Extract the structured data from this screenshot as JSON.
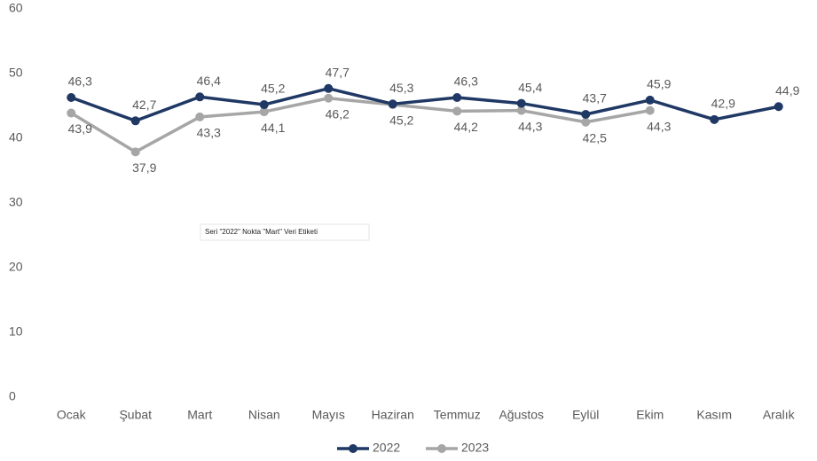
{
  "chart_data": {
    "type": "line",
    "categories": [
      "Ocak",
      "Şubat",
      "Mart",
      "Nisan",
      "Mayıs",
      "Haziran",
      "Temmuz",
      "Ağustos",
      "Eylül",
      "Ekim",
      "Kasım",
      "Aralık"
    ],
    "series": [
      {
        "name": "2022",
        "color": "#1f3864",
        "values": [
          46.3,
          42.7,
          46.4,
          45.2,
          47.7,
          45.3,
          46.3,
          45.4,
          43.7,
          45.9,
          42.9,
          44.9
        ],
        "value_labels": [
          "46,3",
          "42,7",
          "46,4",
          "45,2",
          "47,7",
          "45,3",
          "46,3",
          "45,4",
          "43,7",
          "45,9",
          "42,9",
          "44,9"
        ]
      },
      {
        "name": "2023",
        "color": "#a6a6a6",
        "values": [
          43.9,
          37.9,
          43.3,
          44.1,
          46.2,
          45.2,
          44.2,
          44.3,
          42.5,
          44.3,
          null,
          null
        ],
        "value_labels": [
          "43,9",
          "37,9",
          "43,3",
          "44,1",
          "46,2",
          "45,2",
          "44,2",
          "44,3",
          "42,5",
          "44,3",
          null,
          null
        ]
      }
    ],
    "ylim": [
      0,
      60
    ],
    "yticks": [
      0,
      10,
      20,
      30,
      40,
      50,
      60
    ],
    "grid": false,
    "legend": "bottom",
    "tooltip": "Seri \"2022\" Nokta \"Mart\" Veri Etiketi"
  }
}
